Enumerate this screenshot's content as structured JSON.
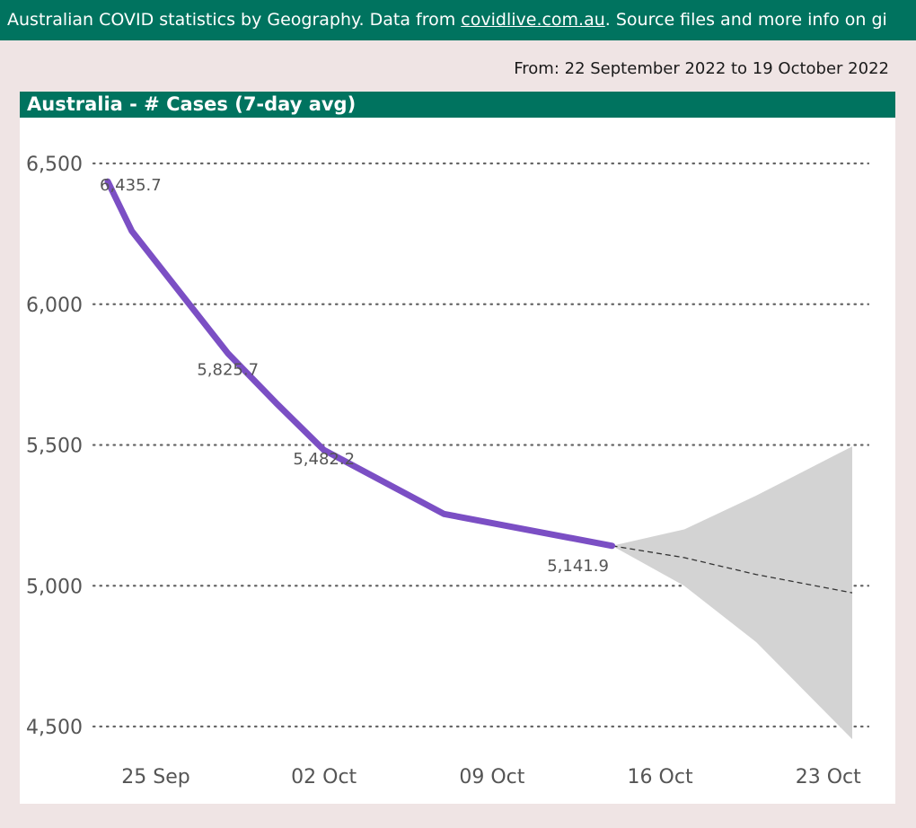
{
  "header": {
    "prefix": "Australian COVID statistics by Geography. Data from ",
    "link": "covidlive.com.au",
    "suffix": ". Source files and more info on gi"
  },
  "filter": {
    "date_range": "From: 22 September 2022 to 19 October 2022"
  },
  "colors": {
    "brand": "#00735F",
    "line": "#7B4FC4",
    "forecast_band": "#D3D3D3",
    "background": "#EFE4E4"
  },
  "chart_data": {
    "type": "line",
    "title": "Australia - # Cases (7-day avg)",
    "x_start": "2022-09-23",
    "x_end": "2022-10-24",
    "xticks": [
      {
        "date": "2022-09-25",
        "label": "25 Sep"
      },
      {
        "date": "2022-10-02",
        "label": "02 Oct"
      },
      {
        "date": "2022-10-09",
        "label": "09 Oct"
      },
      {
        "date": "2022-10-16",
        "label": "16 Oct"
      },
      {
        "date": "2022-10-23",
        "label": "23 Oct"
      }
    ],
    "ylim": [
      4500,
      6500
    ],
    "yticks": [
      {
        "value": 4500,
        "label": "4,500"
      },
      {
        "value": 5000,
        "label": "5,000"
      },
      {
        "value": 5500,
        "label": "5,500"
      },
      {
        "value": 6000,
        "label": "6,000"
      },
      {
        "value": 6500,
        "label": "6,500"
      }
    ],
    "grid": true,
    "series": [
      {
        "points": [
          {
            "date": "2022-09-23",
            "value": 6435.7,
            "label": "6,435.7"
          },
          {
            "date": "2022-09-24",
            "value": 6260
          },
          {
            "date": "2022-09-28",
            "value": 5825.7,
            "label": "5,825.7"
          },
          {
            "date": "2022-09-30",
            "value": 5650
          },
          {
            "date": "2022-10-02",
            "value": 5482.2,
            "label": "5,482.2"
          },
          {
            "date": "2022-10-07",
            "value": 5255
          },
          {
            "date": "2022-10-14",
            "value": 5141.9,
            "label": "5,141.9"
          }
        ]
      }
    ],
    "forecast": [
      {
        "date": "2022-10-14",
        "value": 5141.9,
        "lower": 5141.9,
        "upper": 5141.9
      },
      {
        "date": "2022-10-17",
        "value": 5100,
        "lower": 5000,
        "upper": 5200
      },
      {
        "date": "2022-10-20",
        "value": 5040,
        "lower": 4800,
        "upper": 5320
      },
      {
        "date": "2022-10-24",
        "value": 4975,
        "lower": 4455,
        "upper": 5495
      }
    ]
  }
}
